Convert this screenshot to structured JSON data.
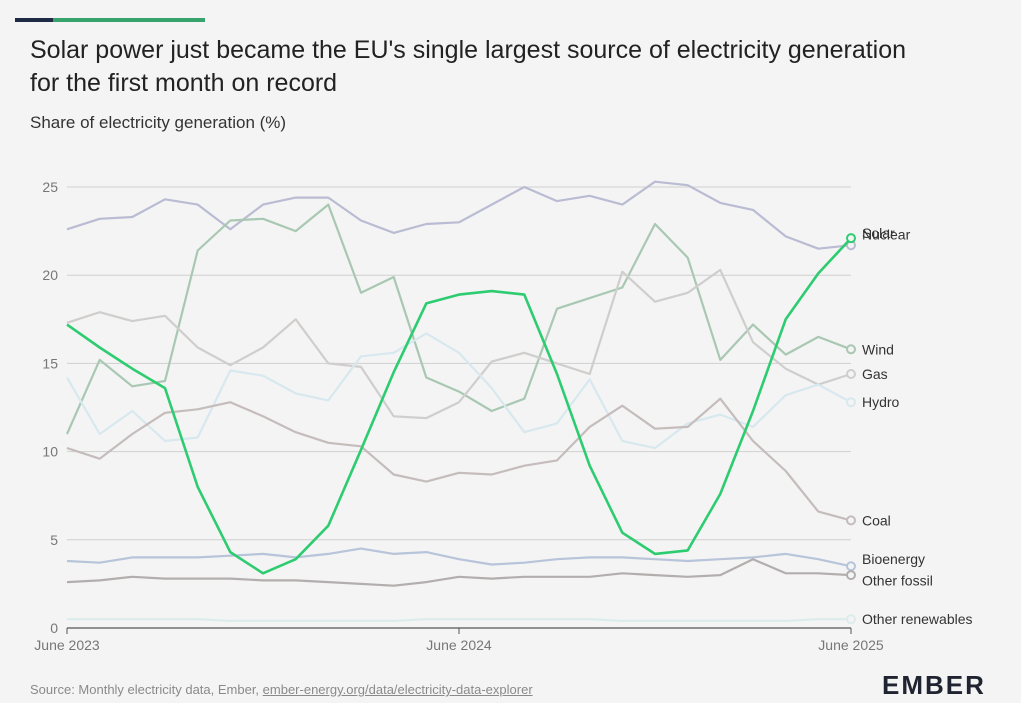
{
  "header": {
    "title": "Solar power just became the EU's single largest source of electricity generation for the first month on record",
    "subtitle": "Share of electricity generation (%)"
  },
  "footer": {
    "source_prefix": "Source: Monthly electricity data, Ember, ",
    "source_link": "ember-energy.org/data/electricity-data-explorer",
    "logo_text": "EMBER"
  },
  "chart_data": {
    "type": "line",
    "title": "Solar power just became the EU's single largest source of electricity generation for the first month on record",
    "ylabel": "Share of electricity generation (%)",
    "xlabel": "",
    "ylim": [
      0,
      25
    ],
    "y_ticks": [
      0,
      5,
      10,
      15,
      20,
      25
    ],
    "x_tick_labels": [
      {
        "index": 0,
        "label": "June 2023"
      },
      {
        "index": 12,
        "label": "June 2024"
      },
      {
        "index": 24,
        "label": "June 2025"
      }
    ],
    "x": [
      "Jun 2023",
      "Jul 2023",
      "Aug 2023",
      "Sep 2023",
      "Oct 2023",
      "Nov 2023",
      "Dec 2023",
      "Jan 2024",
      "Feb 2024",
      "Mar 2024",
      "Apr 2024",
      "May 2024",
      "Jun 2024",
      "Jul 2024",
      "Aug 2024",
      "Sep 2024",
      "Oct 2024",
      "Nov 2024",
      "Dec 2024",
      "Jan 2025",
      "Feb 2025",
      "Mar 2025",
      "Apr 2025",
      "May 2025",
      "Jun 2025"
    ],
    "grid": true,
    "legend": "right, end-of-line labels",
    "series": [
      {
        "name": "Nuclear",
        "color": "#b9bcd2",
        "label_offset": 0.6,
        "values": [
          22.6,
          23.2,
          23.3,
          24.3,
          24.0,
          22.6,
          24.0,
          24.4,
          24.4,
          23.1,
          22.4,
          22.9,
          23.0,
          24.0,
          25.0,
          24.2,
          24.5,
          24.0,
          25.3,
          25.1,
          24.1,
          23.7,
          22.2,
          21.5,
          21.7
        ]
      },
      {
        "name": "Wind",
        "color": "#a9c8b3",
        "label_offset": 0,
        "values": [
          11.0,
          15.2,
          13.7,
          14.0,
          21.4,
          23.1,
          23.2,
          22.5,
          24.0,
          19.0,
          19.9,
          14.2,
          13.4,
          12.3,
          13.0,
          18.1,
          18.7,
          19.3,
          22.9,
          21.0,
          15.2,
          17.2,
          15.5,
          16.5,
          15.8
        ]
      },
      {
        "name": "Gas",
        "color": "#d0cecd",
        "label_offset": 0,
        "values": [
          17.3,
          17.9,
          17.4,
          17.7,
          15.9,
          14.9,
          15.9,
          17.5,
          15.0,
          14.8,
          12.0,
          11.9,
          12.8,
          15.1,
          15.6,
          15.0,
          14.4,
          20.2,
          18.5,
          19.0,
          20.3,
          16.2,
          14.7,
          13.8,
          14.4
        ]
      },
      {
        "name": "Hydro",
        "color": "#d7e8ef",
        "label_offset": 0,
        "values": [
          14.2,
          11.0,
          12.3,
          10.6,
          10.8,
          14.6,
          14.3,
          13.3,
          12.9,
          15.4,
          15.6,
          16.7,
          15.6,
          13.6,
          11.1,
          11.6,
          14.1,
          10.6,
          10.2,
          11.6,
          12.1,
          11.4,
          13.2,
          13.8,
          12.8
        ]
      },
      {
        "name": "Coal",
        "color": "#c5bcbc",
        "label_offset": 0,
        "values": [
          10.2,
          9.6,
          11.0,
          12.2,
          12.4,
          12.8,
          12.0,
          11.1,
          10.5,
          10.3,
          8.7,
          8.3,
          8.8,
          8.7,
          9.2,
          9.5,
          11.4,
          12.6,
          11.3,
          11.4,
          13.0,
          10.6,
          8.9,
          6.6,
          6.1
        ]
      },
      {
        "name": "Bioenergy",
        "color": "#b7c4d9",
        "label_offset": 0.4,
        "values": [
          3.8,
          3.7,
          4.0,
          4.0,
          4.0,
          4.1,
          4.2,
          4.0,
          4.2,
          4.5,
          4.2,
          4.3,
          3.9,
          3.6,
          3.7,
          3.9,
          4.0,
          4.0,
          3.9,
          3.8,
          3.9,
          4.0,
          4.2,
          3.9,
          3.5
        ]
      },
      {
        "name": "Other fossil",
        "color": "#b3aeae",
        "label_offset": -0.3,
        "values": [
          2.6,
          2.7,
          2.9,
          2.8,
          2.8,
          2.8,
          2.7,
          2.7,
          2.6,
          2.5,
          2.4,
          2.6,
          2.9,
          2.8,
          2.9,
          2.9,
          2.9,
          3.1,
          3.0,
          2.9,
          3.0,
          3.9,
          3.1,
          3.1,
          3.0
        ]
      },
      {
        "name": "Other renewables",
        "color": "#dcecec",
        "label_offset": 0,
        "values": [
          0.5,
          0.5,
          0.5,
          0.5,
          0.5,
          0.4,
          0.4,
          0.4,
          0.4,
          0.4,
          0.4,
          0.5,
          0.5,
          0.5,
          0.5,
          0.5,
          0.5,
          0.4,
          0.4,
          0.4,
          0.4,
          0.4,
          0.4,
          0.5,
          0.5
        ]
      },
      {
        "name": "Solar",
        "color": "#2ecc71",
        "label_offset": 0.3,
        "values": [
          17.2,
          15.9,
          14.7,
          13.6,
          8.0,
          4.3,
          3.1,
          3.9,
          5.8,
          10.1,
          14.5,
          18.4,
          18.9,
          19.1,
          18.9,
          14.4,
          9.2,
          5.4,
          4.2,
          4.4,
          7.6,
          12.3,
          17.5,
          20.1,
          22.1
        ]
      }
    ]
  }
}
